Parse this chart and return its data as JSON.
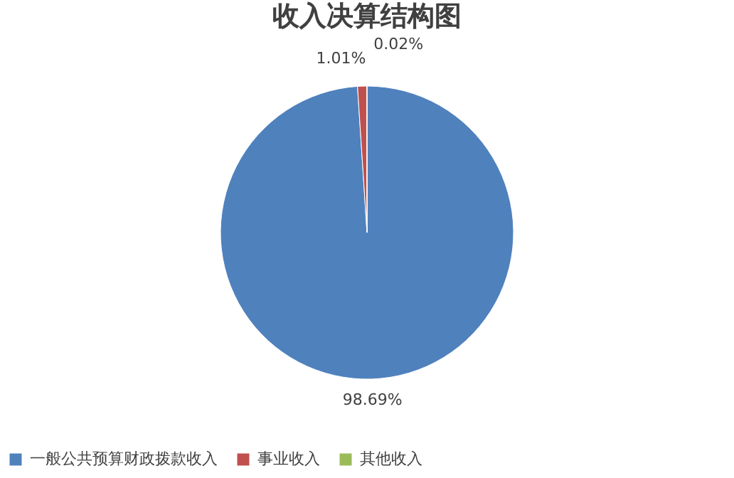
{
  "chart_data": {
    "type": "pie",
    "title": "收入决算结构图",
    "categories": [
      "一般公共预算财政拨款收入",
      "事业收入",
      "其他收入"
    ],
    "values": [
      98.69,
      1.01,
      0.02
    ],
    "colors": [
      "#4f81bd",
      "#c0504d",
      "#9bbb59"
    ],
    "value_labels": [
      "98.69%",
      "1.01%",
      "0.02%"
    ],
    "legend": "bottom"
  }
}
